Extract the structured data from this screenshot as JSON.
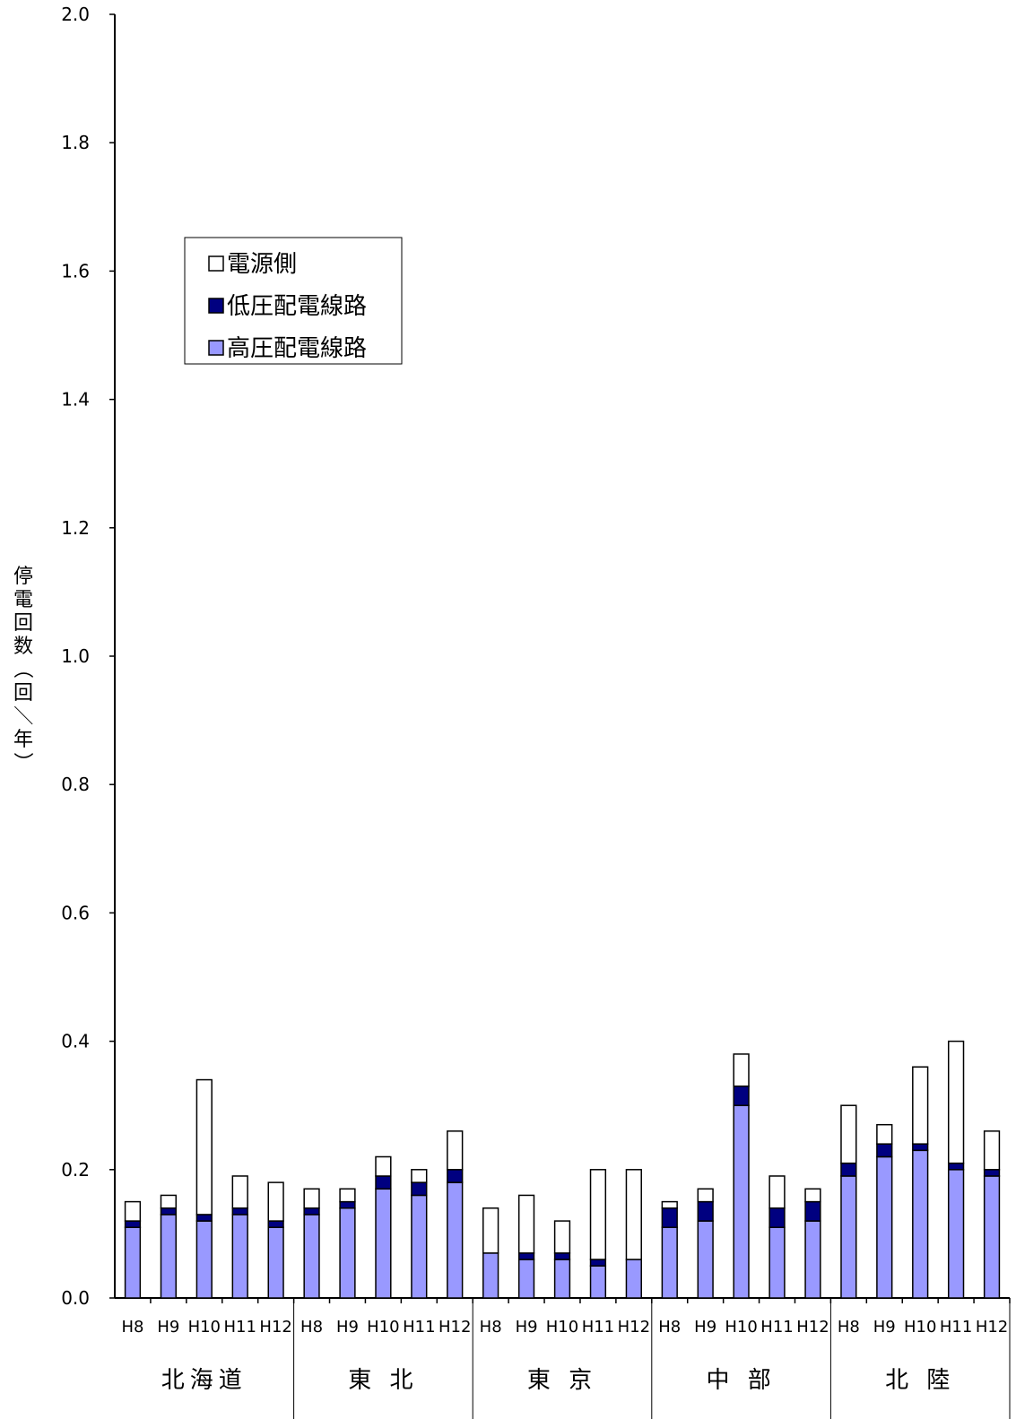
{
  "chart_data": {
    "type": "bar",
    "stacked": true,
    "ylabel": "停電回数（回／年）",
    "ylim": [
      0,
      2.0
    ],
    "yticks": [
      "0.0",
      "0.2",
      "0.4",
      "0.6",
      "0.8",
      "1.0",
      "1.2",
      "1.4",
      "1.6",
      "1.8",
      "2.0"
    ],
    "groups": [
      "北海道",
      "東 北",
      "東 京",
      "中 部",
      "北 陸"
    ],
    "categories": [
      "H8",
      "H9",
      "H10",
      "H11",
      "H12"
    ],
    "legend_position": "upper-left",
    "series": [
      {
        "name": "高圧配電線路",
        "color": "#9999ff",
        "values": [
          [
            0.11,
            0.13,
            0.12,
            0.13,
            0.11
          ],
          [
            0.13,
            0.14,
            0.17,
            0.16,
            0.18
          ],
          [
            0.07,
            0.06,
            0.06,
            0.05,
            0.06
          ],
          [
            0.11,
            0.12,
            0.3,
            0.11,
            0.12
          ],
          [
            0.19,
            0.22,
            0.23,
            0.2,
            0.19
          ]
        ]
      },
      {
        "name": "低圧配電線路",
        "color": "#000080",
        "values": [
          [
            0.01,
            0.01,
            0.01,
            0.01,
            0.01
          ],
          [
            0.01,
            0.01,
            0.02,
            0.02,
            0.02
          ],
          [
            0.0,
            0.01,
            0.01,
            0.01,
            0.0
          ],
          [
            0.03,
            0.03,
            0.03,
            0.03,
            0.03
          ],
          [
            0.02,
            0.02,
            0.01,
            0.01,
            0.01
          ]
        ]
      },
      {
        "name": "電源側",
        "color": "#ffffff",
        "values": [
          [
            0.03,
            0.02,
            0.21,
            0.05,
            0.06
          ],
          [
            0.03,
            0.02,
            0.03,
            0.02,
            0.06
          ],
          [
            0.07,
            0.09,
            0.05,
            0.14,
            0.14
          ],
          [
            0.01,
            0.02,
            0.05,
            0.05,
            0.02
          ],
          [
            0.09,
            0.03,
            0.12,
            0.19,
            0.06
          ]
        ]
      }
    ]
  }
}
